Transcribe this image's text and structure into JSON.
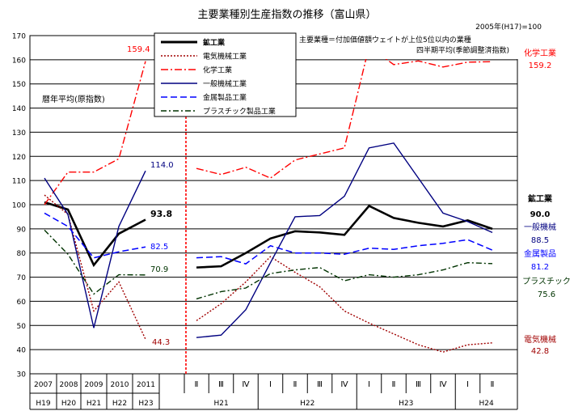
{
  "title": "主要業種別生産指数の推移（富山県）",
  "note_base": "2005年(H17)=100",
  "note_major": "主要業種＝付加価値額ウェイトが上位5位以内の業種",
  "note_quarterly": "四半期平均(季節調整済指数)",
  "note_annual": "暦年平均(原指数)",
  "chart_data": {
    "type": "line",
    "ylim": [
      30,
      170
    ],
    "yticks": [
      30,
      40,
      50,
      60,
      70,
      80,
      90,
      100,
      110,
      120,
      130,
      140,
      150,
      160,
      170
    ],
    "annual_x": [
      {
        "year": "2007",
        "era": "H19"
      },
      {
        "year": "2008",
        "era": "H20"
      },
      {
        "year": "2009",
        "era": "H21"
      },
      {
        "year": "2010",
        "era": "H22"
      },
      {
        "year": "2011",
        "era": "H23"
      }
    ],
    "quarter_x": [
      "Ⅱ",
      "Ⅲ",
      "Ⅳ",
      "Ⅰ",
      "Ⅱ",
      "Ⅲ",
      "Ⅳ",
      "Ⅰ",
      "Ⅱ",
      "Ⅲ",
      "Ⅳ",
      "Ⅰ",
      "Ⅱ"
    ],
    "quarter_groups": [
      {
        "label": "H21",
        "from": 0,
        "to": 2
      },
      {
        "label": "H22",
        "from": 3,
        "to": 6
      },
      {
        "label": "H23",
        "from": 7,
        "to": 10
      },
      {
        "label": "H24",
        "from": 11,
        "to": 12
      }
    ],
    "series": [
      {
        "name": "鉱工業",
        "key": "mining",
        "color": "#000000",
        "dash": "",
        "width": 2.6,
        "annual": [
          101,
          98,
          75,
          88,
          93.8
        ],
        "quarterly": [
          74,
          74.5,
          80,
          86,
          89,
          88.5,
          87.5,
          99.5,
          94.5,
          92.5,
          91,
          93.5,
          90
        ],
        "annual_label": "93.8",
        "end_label": "90.0",
        "end_name": "鉱工業"
      },
      {
        "name": "電気機械工業",
        "key": "electric",
        "color": "#a00000",
        "dash": "2,2",
        "width": 1.4,
        "annual": [
          104,
          96,
          56,
          68,
          44.3
        ],
        "quarterly": [
          52,
          59,
          68,
          78.5,
          72,
          66,
          56,
          51,
          46.5,
          42,
          39,
          42,
          42.8
        ],
        "annual_label": "44.3",
        "end_label": "42.8",
        "end_name": "電気機械"
      },
      {
        "name": "化学工業",
        "key": "chemical",
        "color": "#ff0000",
        "dash": "9,3,2,3",
        "width": 1.4,
        "annual": [
          100,
          113.5,
          113.5,
          119,
          159.4
        ],
        "quarterly": [
          115,
          112.5,
          115.5,
          111,
          118.5,
          121,
          123.5,
          165.5,
          158,
          159.5,
          157,
          159,
          159.2
        ],
        "annual_label": "159.4",
        "end_label": "159.2",
        "end_name": "化学工業"
      },
      {
        "name": "一般機械工業",
        "key": "general",
        "color": "#000080",
        "dash": "",
        "width": 1.4,
        "annual": [
          111,
          96,
          49,
          91,
          114.0
        ],
        "quarterly": [
          45,
          46,
          56.5,
          76,
          95,
          95.5,
          103.5,
          123.5,
          125.5,
          111,
          96.5,
          93,
          88.5
        ],
        "annual_label": "114.0",
        "end_label": "88.5",
        "end_name": "一般機械"
      },
      {
        "name": "金属製品工業",
        "key": "metal",
        "color": "#0000ff",
        "dash": "8,4",
        "width": 1.5,
        "annual": [
          96.5,
          91,
          78,
          80.5,
          82.5
        ],
        "quarterly": [
          78,
          78.5,
          75.5,
          83,
          80,
          80,
          79.5,
          82,
          81.5,
          83,
          84,
          85.5,
          81.2
        ],
        "annual_label": "82.5",
        "end_label": "81.2",
        "end_name": "金属製品"
      },
      {
        "name": "プラスチック製品工業",
        "key": "plastic",
        "color": "#003300",
        "dash": "7,3,2,3",
        "width": 1.4,
        "annual": [
          89.5,
          79.5,
          63,
          71,
          70.9
        ],
        "quarterly": [
          61,
          64,
          65.5,
          71.5,
          73,
          74,
          68.5,
          71,
          70,
          71,
          73,
          76,
          75.6
        ],
        "annual_label": "70.9",
        "end_label": "75.6",
        "end_name": "プラスチック"
      }
    ]
  }
}
